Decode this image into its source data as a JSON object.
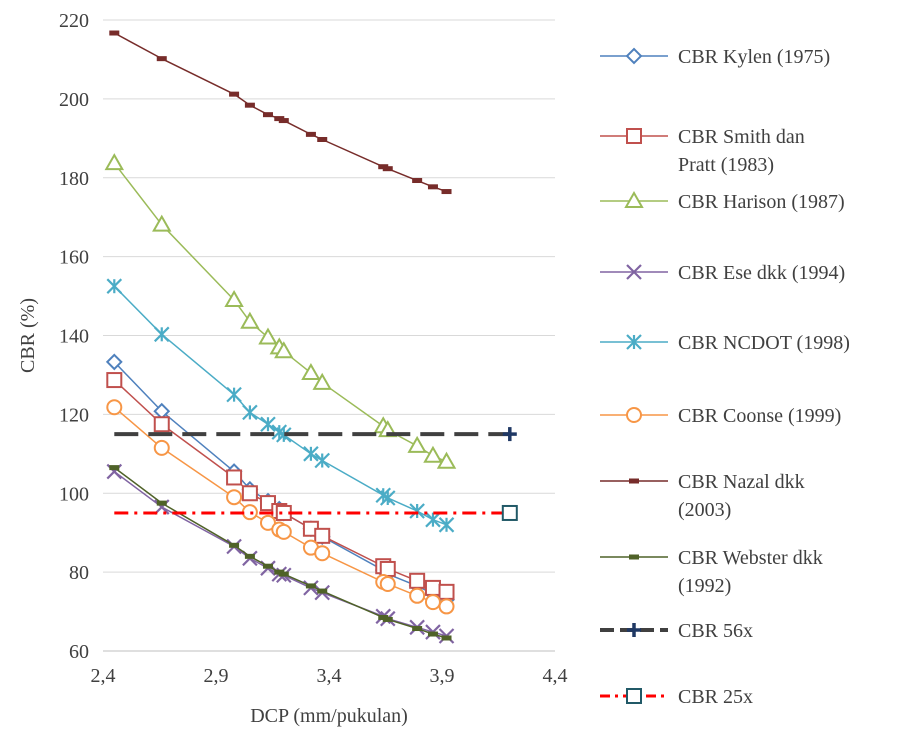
{
  "chart_data": {
    "type": "line",
    "xlabel": "DCP (mm/pukulan)",
    "ylabel": "CBR (%)",
    "xlim": [
      2.4,
      4.4
    ],
    "ylim": [
      60,
      220
    ],
    "xticks": [
      "2,4",
      "2,9",
      "3,4",
      "3,9",
      "4,4"
    ],
    "xtick_values": [
      2.4,
      2.9,
      3.4,
      3.9,
      4.4
    ],
    "yticks": [
      60,
      80,
      100,
      120,
      140,
      160,
      180,
      200,
      220
    ],
    "grid": "horizontal",
    "legend_position": "right",
    "series": [
      {
        "name": "CBR Kylen (1975)",
        "color": "#4f81bd",
        "marker": "diamond",
        "line_style": "solid",
        "points": [
          [
            2.45,
            133.3
          ],
          [
            2.66,
            120.8
          ],
          [
            2.98,
            105.5
          ],
          [
            3.05,
            101.0
          ],
          [
            3.13,
            98.0
          ],
          [
            3.18,
            96.0
          ],
          [
            3.2,
            95.0
          ],
          [
            3.32,
            91.0
          ],
          [
            3.37,
            89.0
          ],
          [
            3.64,
            80.5
          ],
          [
            3.66,
            79.5
          ],
          [
            3.79,
            76.5
          ],
          [
            3.86,
            74.5
          ],
          [
            3.92,
            73.0
          ]
        ]
      },
      {
        "name": "CBR Smith dan Pratt (1983)",
        "color": "#c0504d",
        "marker": "square",
        "line_style": "solid",
        "points": [
          [
            2.45,
            128.7
          ],
          [
            2.66,
            117.5
          ],
          [
            2.98,
            104.0
          ],
          [
            3.05,
            100.0
          ],
          [
            3.13,
            97.5
          ],
          [
            3.18,
            95.5
          ],
          [
            3.2,
            95.0
          ],
          [
            3.32,
            91.0
          ],
          [
            3.37,
            89.2
          ],
          [
            3.64,
            81.5
          ],
          [
            3.66,
            80.8
          ],
          [
            3.79,
            77.8
          ],
          [
            3.86,
            76.0
          ],
          [
            3.92,
            75.0
          ]
        ]
      },
      {
        "name": "CBR Harison (1987)",
        "color": "#9bbb59",
        "marker": "triangle",
        "line_style": "solid",
        "points": [
          [
            2.45,
            183.7
          ],
          [
            2.66,
            168.1
          ],
          [
            2.98,
            149.0
          ],
          [
            3.05,
            143.5
          ],
          [
            3.13,
            139.5
          ],
          [
            3.18,
            137.0
          ],
          [
            3.2,
            136.0
          ],
          [
            3.32,
            130.5
          ],
          [
            3.37,
            128.0
          ],
          [
            3.64,
            117.0
          ],
          [
            3.66,
            116.0
          ],
          [
            3.79,
            112.0
          ],
          [
            3.86,
            109.5
          ],
          [
            3.92,
            108.0
          ]
        ]
      },
      {
        "name": "CBR Ese dkk (1994)",
        "color": "#8064a2",
        "marker": "x",
        "line_style": "solid",
        "points": [
          [
            2.45,
            105.5
          ],
          [
            2.66,
            96.5
          ],
          [
            2.98,
            86.5
          ],
          [
            3.05,
            83.5
          ],
          [
            3.13,
            81.0
          ],
          [
            3.18,
            79.5
          ],
          [
            3.2,
            79.2
          ],
          [
            3.32,
            76.0
          ],
          [
            3.37,
            74.8
          ],
          [
            3.64,
            68.8
          ],
          [
            3.66,
            68.2
          ],
          [
            3.79,
            66.0
          ],
          [
            3.86,
            64.8
          ],
          [
            3.92,
            63.8
          ]
        ]
      },
      {
        "name": "CBR NCDOT (1998)",
        "color": "#4bacc6",
        "marker": "asterisk",
        "line_style": "solid",
        "points": [
          [
            2.45,
            152.5
          ],
          [
            2.66,
            140.3
          ],
          [
            2.98,
            125.0
          ],
          [
            3.05,
            120.5
          ],
          [
            3.13,
            117.5
          ],
          [
            3.18,
            115.5
          ],
          [
            3.2,
            114.8
          ],
          [
            3.32,
            110.0
          ],
          [
            3.37,
            108.3
          ],
          [
            3.64,
            99.5
          ],
          [
            3.66,
            98.8
          ],
          [
            3.79,
            95.5
          ],
          [
            3.86,
            93.3
          ],
          [
            3.92,
            92.0
          ]
        ]
      },
      {
        "name": "CBR Coonse (1999)",
        "color": "#f79646",
        "marker": "circle",
        "line_style": "solid",
        "points": [
          [
            2.45,
            121.8
          ],
          [
            2.66,
            111.5
          ],
          [
            2.98,
            99.0
          ],
          [
            3.05,
            95.2
          ],
          [
            3.13,
            92.5
          ],
          [
            3.18,
            90.8
          ],
          [
            3.2,
            90.2
          ],
          [
            3.32,
            86.2
          ],
          [
            3.37,
            84.8
          ],
          [
            3.64,
            77.5
          ],
          [
            3.66,
            77.0
          ],
          [
            3.79,
            74.0
          ],
          [
            3.86,
            72.4
          ],
          [
            3.92,
            71.3
          ]
        ]
      },
      {
        "name": "CBR Nazal dkk (2003)",
        "color": "#772c2a",
        "marker": "dash",
        "line_style": "solid",
        "points": [
          [
            2.45,
            216.7
          ],
          [
            2.66,
            210.2
          ],
          [
            2.98,
            201.2
          ],
          [
            3.05,
            198.4
          ],
          [
            3.13,
            196.0
          ],
          [
            3.18,
            195.0
          ],
          [
            3.2,
            194.5
          ],
          [
            3.32,
            191.0
          ],
          [
            3.37,
            189.7
          ],
          [
            3.64,
            182.8
          ],
          [
            3.66,
            182.3
          ],
          [
            3.79,
            179.3
          ],
          [
            3.86,
            177.7
          ],
          [
            3.92,
            176.5
          ]
        ]
      },
      {
        "name": "CBR Webster dkk (1992)",
        "color": "#4f6228",
        "marker": "dash",
        "line_style": "solid",
        "points": [
          [
            2.45,
            106.5
          ],
          [
            2.66,
            97.5
          ],
          [
            2.98,
            86.8
          ],
          [
            3.05,
            84.0
          ],
          [
            3.13,
            81.5
          ],
          [
            3.18,
            80.0
          ],
          [
            3.2,
            79.5
          ],
          [
            3.32,
            76.5
          ],
          [
            3.37,
            75.2
          ],
          [
            3.64,
            68.5
          ],
          [
            3.66,
            68.0
          ],
          [
            3.79,
            65.7
          ],
          [
            3.86,
            64.3
          ],
          [
            3.92,
            63.3
          ]
        ]
      },
      {
        "name": "CBR 56x",
        "color": "#404040",
        "marker_color": "#1f3864",
        "marker": "plus",
        "line_style": "dashed",
        "points": [
          [
            2.45,
            115
          ],
          [
            4.2,
            115
          ]
        ]
      },
      {
        "name": "CBR 25x",
        "color": "#ff0000",
        "marker_color": "#215967",
        "marker": "square",
        "line_style": "dashdot",
        "points": [
          [
            2.45,
            95
          ],
          [
            4.2,
            95
          ]
        ]
      }
    ]
  }
}
